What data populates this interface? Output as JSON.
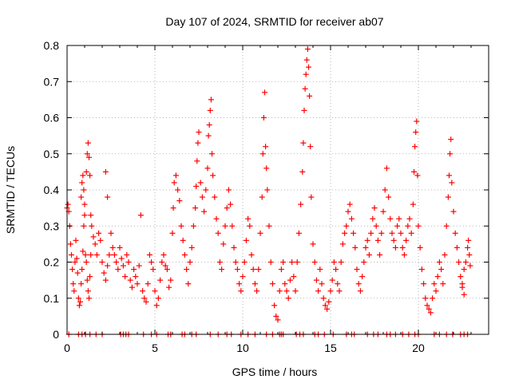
{
  "chart_data": {
    "type": "scatter",
    "title": "Day 107 of 2024, SRMTID for receiver ab07",
    "xlabel": "GPS time / hours",
    "ylabel": "SRMTID / TECUs",
    "xlim": [
      0,
      24
    ],
    "ylim": [
      0,
      0.8
    ],
    "xticks": [
      0,
      5,
      10,
      15,
      20
    ],
    "yticks": [
      0,
      0.1,
      0.2,
      0.3,
      0.4,
      0.5,
      0.6,
      0.7,
      0.8
    ],
    "grid": true,
    "marker": "+",
    "color": "#ff0000",
    "series": [
      {
        "name": "SRMTID",
        "points": [
          [
            0.0,
            0.35
          ],
          [
            0.05,
            0.36
          ],
          [
            0.1,
            0.34
          ],
          [
            0.15,
            0.3
          ],
          [
            0.2,
            0.25
          ],
          [
            0.25,
            0.22
          ],
          [
            0.3,
            0.18
          ],
          [
            0.35,
            0.14
          ],
          [
            0.4,
            0.12
          ],
          [
            0.45,
            0.2
          ],
          [
            0.5,
            0.26
          ],
          [
            0.55,
            0.21
          ],
          [
            0.6,
            0.17
          ],
          [
            0.65,
            0.1
          ],
          [
            0.7,
            0.08
          ],
          [
            0.75,
            0.09
          ],
          [
            0.8,
            0.14
          ],
          [
            0.85,
            0.18
          ],
          [
            0.9,
            0.23
          ],
          [
            0.95,
            0.3
          ],
          [
            1.0,
            0.33
          ],
          [
            1.05,
            0.22
          ],
          [
            1.1,
            0.2
          ],
          [
            1.15,
            0.15
          ],
          [
            1.2,
            0.12
          ],
          [
            1.25,
            0.1
          ],
          [
            1.3,
            0.16
          ],
          [
            1.35,
            0.22
          ],
          [
            0.8,
            0.38
          ],
          [
            0.85,
            0.42
          ],
          [
            0.9,
            0.44
          ],
          [
            0.95,
            0.4
          ],
          [
            1.0,
            0.36
          ],
          [
            1.1,
            0.45
          ],
          [
            1.15,
            0.5
          ],
          [
            1.2,
            0.53
          ],
          [
            1.25,
            0.49
          ],
          [
            1.3,
            0.44
          ],
          [
            1.35,
            0.33
          ],
          [
            1.4,
            0.3
          ],
          [
            1.5,
            0.27
          ],
          [
            1.6,
            0.25
          ],
          [
            1.7,
            0.22
          ],
          [
            1.8,
            0.28
          ],
          [
            1.9,
            0.26
          ],
          [
            2.0,
            0.2
          ],
          [
            2.1,
            0.17
          ],
          [
            2.2,
            0.15
          ],
          [
            2.3,
            0.19
          ],
          [
            2.4,
            0.22
          ],
          [
            2.2,
            0.45
          ],
          [
            2.3,
            0.38
          ],
          [
            2.5,
            0.28
          ],
          [
            2.6,
            0.24
          ],
          [
            2.7,
            0.22
          ],
          [
            2.8,
            0.2
          ],
          [
            2.9,
            0.18
          ],
          [
            3.0,
            0.24
          ],
          [
            3.1,
            0.21
          ],
          [
            3.2,
            0.19
          ],
          [
            3.3,
            0.16
          ],
          [
            3.4,
            0.22
          ],
          [
            3.5,
            0.2
          ],
          [
            3.6,
            0.15
          ],
          [
            3.7,
            0.13
          ],
          [
            3.8,
            0.18
          ],
          [
            3.9,
            0.16
          ],
          [
            4.0,
            0.14
          ],
          [
            4.1,
            0.19
          ],
          [
            4.2,
            0.33
          ],
          [
            4.3,
            0.12
          ],
          [
            4.4,
            0.1
          ],
          [
            4.5,
            0.09
          ],
          [
            4.6,
            0.14
          ],
          [
            4.7,
            0.22
          ],
          [
            4.8,
            0.2
          ],
          [
            4.9,
            0.18
          ],
          [
            5.0,
            0.12
          ],
          [
            5.1,
            0.08
          ],
          [
            5.2,
            0.1
          ],
          [
            5.3,
            0.15
          ],
          [
            5.4,
            0.2
          ],
          [
            5.5,
            0.22
          ],
          [
            5.6,
            0.19
          ],
          [
            5.7,
            0.18
          ],
          [
            5.8,
            0.13
          ],
          [
            5.9,
            0.15
          ],
          [
            6.0,
            0.28
          ],
          [
            6.05,
            0.35
          ],
          [
            6.1,
            0.42
          ],
          [
            6.2,
            0.44
          ],
          [
            6.3,
            0.4
          ],
          [
            6.4,
            0.37
          ],
          [
            6.5,
            0.3
          ],
          [
            6.6,
            0.26
          ],
          [
            6.7,
            0.22
          ],
          [
            6.8,
            0.18
          ],
          [
            6.9,
            0.14
          ],
          [
            7.0,
            0.2
          ],
          [
            7.1,
            0.24
          ],
          [
            7.2,
            0.3
          ],
          [
            7.3,
            0.35
          ],
          [
            7.35,
            0.41
          ],
          [
            7.4,
            0.48
          ],
          [
            7.45,
            0.53
          ],
          [
            7.5,
            0.56
          ],
          [
            7.6,
            0.42
          ],
          [
            7.7,
            0.38
          ],
          [
            7.8,
            0.34
          ],
          [
            7.9,
            0.4
          ],
          [
            8.0,
            0.46
          ],
          [
            8.05,
            0.55
          ],
          [
            8.1,
            0.58
          ],
          [
            8.15,
            0.62
          ],
          [
            8.2,
            0.65
          ],
          [
            8.25,
            0.5
          ],
          [
            8.3,
            0.44
          ],
          [
            8.4,
            0.38
          ],
          [
            8.5,
            0.32
          ],
          [
            8.6,
            0.28
          ],
          [
            8.7,
            0.2
          ],
          [
            8.8,
            0.18
          ],
          [
            8.9,
            0.25
          ],
          [
            9.0,
            0.3
          ],
          [
            9.1,
            0.35
          ],
          [
            9.2,
            0.4
          ],
          [
            9.3,
            0.36
          ],
          [
            9.4,
            0.3
          ],
          [
            9.5,
            0.24
          ],
          [
            9.6,
            0.2
          ],
          [
            9.7,
            0.18
          ],
          [
            9.8,
            0.14
          ],
          [
            9.9,
            0.12
          ],
          [
            10.0,
            0.16
          ],
          [
            10.1,
            0.2
          ],
          [
            10.2,
            0.26
          ],
          [
            10.3,
            0.32
          ],
          [
            10.4,
            0.3
          ],
          [
            10.5,
            0.22
          ],
          [
            10.6,
            0.18
          ],
          [
            10.7,
            0.14
          ],
          [
            10.8,
            0.12
          ],
          [
            10.9,
            0.18
          ],
          [
            11.0,
            0.28
          ],
          [
            11.1,
            0.38
          ],
          [
            11.15,
            0.5
          ],
          [
            11.2,
            0.6
          ],
          [
            11.25,
            0.67
          ],
          [
            11.3,
            0.52
          ],
          [
            11.35,
            0.46
          ],
          [
            11.4,
            0.4
          ],
          [
            11.5,
            0.3
          ],
          [
            11.6,
            0.2
          ],
          [
            11.7,
            0.14
          ],
          [
            11.8,
            0.08
          ],
          [
            11.9,
            0.05
          ],
          [
            12.0,
            0.04
          ],
          [
            12.1,
            0.12
          ],
          [
            12.2,
            0.18
          ],
          [
            12.3,
            0.2
          ],
          [
            12.4,
            0.14
          ],
          [
            12.5,
            0.12
          ],
          [
            12.6,
            0.1
          ],
          [
            12.7,
            0.15
          ],
          [
            12.8,
            0.2
          ],
          [
            12.9,
            0.16
          ],
          [
            13.0,
            0.12
          ],
          [
            13.1,
            0.2
          ],
          [
            13.2,
            0.28
          ],
          [
            13.3,
            0.36
          ],
          [
            13.4,
            0.45
          ],
          [
            13.45,
            0.53
          ],
          [
            13.5,
            0.62
          ],
          [
            13.55,
            0.68
          ],
          [
            13.6,
            0.72
          ],
          [
            13.65,
            0.76
          ],
          [
            13.7,
            0.79
          ],
          [
            13.75,
            0.74
          ],
          [
            13.8,
            0.66
          ],
          [
            13.85,
            0.52
          ],
          [
            13.9,
            0.38
          ],
          [
            14.0,
            0.25
          ],
          [
            14.1,
            0.2
          ],
          [
            14.2,
            0.15
          ],
          [
            14.3,
            0.12
          ],
          [
            14.4,
            0.18
          ],
          [
            14.5,
            0.14
          ],
          [
            14.6,
            0.1
          ],
          [
            14.7,
            0.08
          ],
          [
            14.8,
            0.07
          ],
          [
            14.9,
            0.09
          ],
          [
            15.0,
            0.12
          ],
          [
            15.1,
            0.15
          ],
          [
            15.2,
            0.2
          ],
          [
            15.3,
            0.18
          ],
          [
            15.4,
            0.14
          ],
          [
            15.5,
            0.12
          ],
          [
            15.6,
            0.2
          ],
          [
            15.7,
            0.25
          ],
          [
            15.8,
            0.28
          ],
          [
            15.9,
            0.3
          ],
          [
            16.0,
            0.34
          ],
          [
            16.1,
            0.36
          ],
          [
            16.2,
            0.32
          ],
          [
            16.3,
            0.28
          ],
          [
            16.4,
            0.24
          ],
          [
            16.5,
            0.18
          ],
          [
            16.6,
            0.14
          ],
          [
            16.7,
            0.12
          ],
          [
            16.8,
            0.16
          ],
          [
            16.9,
            0.2
          ],
          [
            17.0,
            0.24
          ],
          [
            17.1,
            0.26
          ],
          [
            17.2,
            0.22
          ],
          [
            17.3,
            0.28
          ],
          [
            17.4,
            0.32
          ],
          [
            17.5,
            0.35
          ],
          [
            17.6,
            0.3
          ],
          [
            17.7,
            0.26
          ],
          [
            17.8,
            0.22
          ],
          [
            17.9,
            0.28
          ],
          [
            18.0,
            0.34
          ],
          [
            18.1,
            0.4
          ],
          [
            18.2,
            0.46
          ],
          [
            18.3,
            0.38
          ],
          [
            18.4,
            0.32
          ],
          [
            18.5,
            0.28
          ],
          [
            18.6,
            0.26
          ],
          [
            18.7,
            0.24
          ],
          [
            18.8,
            0.3
          ],
          [
            18.9,
            0.32
          ],
          [
            19.0,
            0.28
          ],
          [
            19.1,
            0.24
          ],
          [
            19.2,
            0.22
          ],
          [
            19.3,
            0.26
          ],
          [
            19.4,
            0.3
          ],
          [
            19.5,
            0.32
          ],
          [
            19.6,
            0.28
          ],
          [
            19.7,
            0.36
          ],
          [
            19.75,
            0.45
          ],
          [
            19.8,
            0.52
          ],
          [
            19.85,
            0.56
          ],
          [
            19.9,
            0.59
          ],
          [
            19.95,
            0.44
          ],
          [
            20.0,
            0.3
          ],
          [
            20.1,
            0.24
          ],
          [
            20.2,
            0.18
          ],
          [
            20.3,
            0.14
          ],
          [
            20.4,
            0.1
          ],
          [
            20.5,
            0.08
          ],
          [
            20.6,
            0.07
          ],
          [
            20.7,
            0.06
          ],
          [
            20.8,
            0.1
          ],
          [
            20.9,
            0.14
          ],
          [
            21.0,
            0.12
          ],
          [
            21.1,
            0.16
          ],
          [
            21.2,
            0.2
          ],
          [
            21.3,
            0.18
          ],
          [
            21.4,
            0.14
          ],
          [
            21.5,
            0.22
          ],
          [
            21.6,
            0.3
          ],
          [
            21.7,
            0.38
          ],
          [
            21.75,
            0.44
          ],
          [
            21.8,
            0.5
          ],
          [
            21.85,
            0.54
          ],
          [
            21.9,
            0.42
          ],
          [
            22.0,
            0.34
          ],
          [
            22.1,
            0.28
          ],
          [
            22.2,
            0.24
          ],
          [
            22.3,
            0.2
          ],
          [
            22.4,
            0.16
          ],
          [
            22.5,
            0.14
          ],
          [
            22.6,
            0.18
          ],
          [
            22.7,
            0.2
          ],
          [
            22.8,
            0.24
          ],
          [
            22.85,
            0.26
          ],
          [
            22.9,
            0.22
          ],
          [
            22.95,
            0.19
          ],
          [
            22.5,
            0.13
          ],
          [
            22.6,
            0.11
          ]
        ]
      }
    ],
    "zero_markers": [
      0.1,
      0.65,
      0.85,
      1.05,
      1.3,
      1.65,
      2.0,
      3.05,
      3.2,
      3.35,
      3.5,
      4.35,
      4.8,
      5.1,
      5.75,
      5.9,
      6.55,
      6.7,
      7.1,
      7.35,
      8.15,
      8.6,
      9.1,
      9.35,
      9.9,
      10.3,
      10.7,
      11.35,
      11.7,
      12.1,
      12.2,
      12.3,
      13.05,
      13.25,
      13.45,
      14.1,
      14.3,
      14.65,
      15.15,
      15.9,
      16.2,
      16.35,
      17.1,
      17.45,
      17.7,
      18.2,
      18.4,
      18.7,
      19.1,
      19.45,
      19.8,
      20.0,
      20.9,
      21.2,
      21.6,
      21.95,
      22.4,
      22.6,
      22.8
    ]
  }
}
